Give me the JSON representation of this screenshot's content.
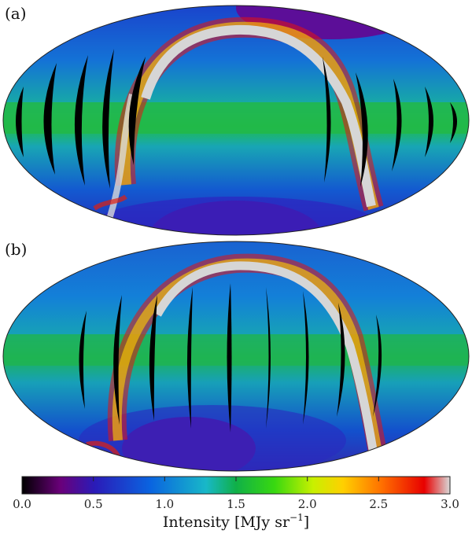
{
  "panels": [
    {
      "label": "(a)"
    },
    {
      "label": "(b)"
    }
  ],
  "colorbar": {
    "ticks": [
      "0.0",
      "0.5",
      "1.0",
      "1.5",
      "2.0",
      "2.5",
      "3.0"
    ],
    "title_main": "Intensity [MJy sr",
    "title_exp": "−1",
    "title_close": "]",
    "colors": [
      "#000000",
      "#6a007a",
      "#2a1bb8",
      "#0a64e0",
      "#18b8c8",
      "#10b048",
      "#38d810",
      "#c8f000",
      "#ffd000",
      "#ff7000",
      "#e80000",
      "#d8d8d8"
    ]
  }
}
